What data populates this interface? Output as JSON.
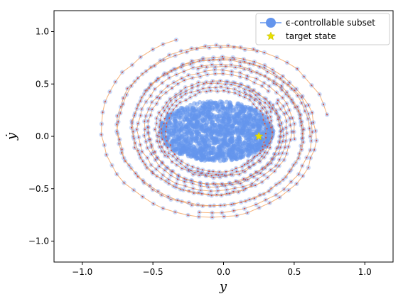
{
  "chart_data": {
    "type": "scatter",
    "title": "",
    "xlabel": "y",
    "ylabel": "ẏ",
    "xlim": [
      -1.2,
      1.2
    ],
    "ylim": [
      -1.2,
      1.2
    ],
    "xticks": [
      -1.0,
      -0.5,
      0.0,
      0.5,
      1.0
    ],
    "xtick_labels": [
      "−1.0",
      "−0.5",
      "0.0",
      "0.5",
      "1.0"
    ],
    "yticks": [
      -1.0,
      -0.5,
      0.0,
      0.5,
      1.0
    ],
    "ytick_labels": [
      "−1.0",
      "−0.5",
      "0.0",
      "0.5",
      "1.0"
    ],
    "grid": false,
    "legend_position": "top-right",
    "series": [
      {
        "name": "ϵ-controllable subset",
        "color": "#6495ed",
        "kind": "trajectory-points",
        "trajectory_color": "#f5a05a",
        "point_center_color": "#d0504a",
        "approx_center": [
          -0.05,
          0.05
        ],
        "approx_radius_y": [
          0.2,
          0.9
        ]
      },
      {
        "name": "target state",
        "color": "#e8e000",
        "marker": "star",
        "x": [
          0.25
        ],
        "y": [
          0.0
        ]
      }
    ]
  }
}
